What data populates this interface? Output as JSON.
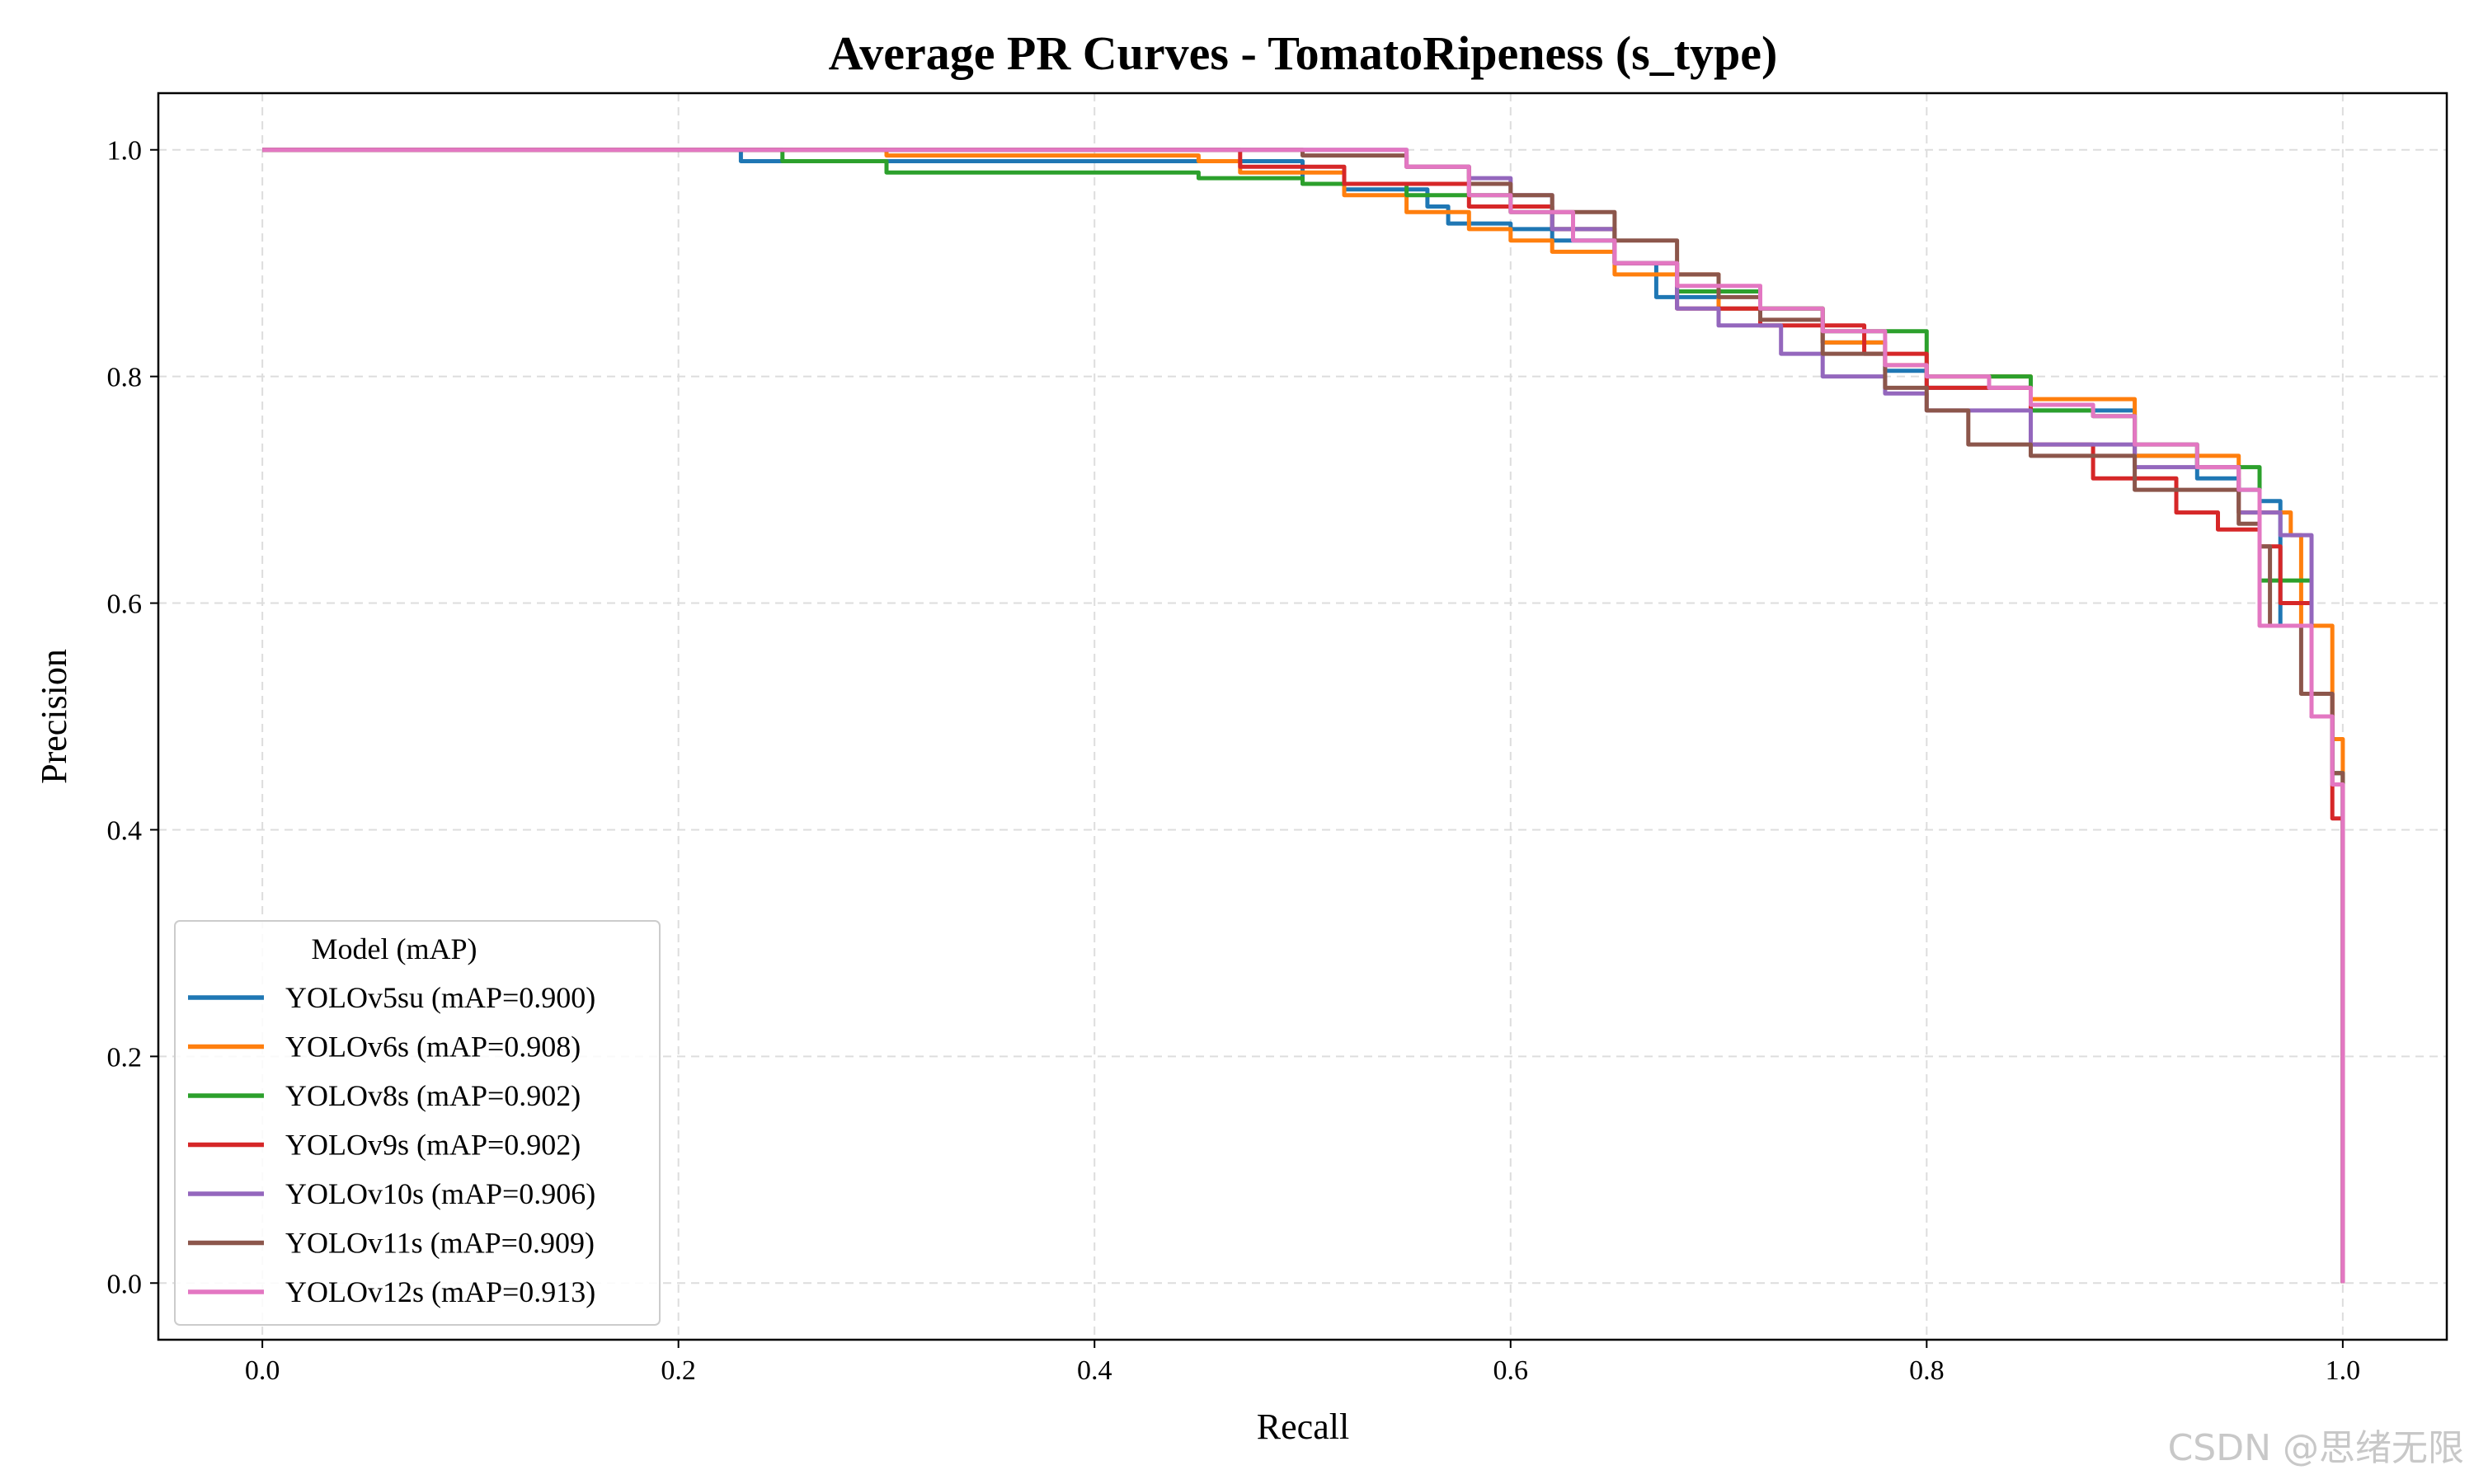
{
  "chart_data": {
    "type": "line",
    "title": "Average PR Curves - TomatoRipeness (s_type)",
    "xlabel": "Recall",
    "ylabel": "Precision",
    "xlim": [
      -0.05,
      1.05
    ],
    "ylim": [
      -0.05,
      1.05
    ],
    "xticks": [
      0.0,
      0.2,
      0.4,
      0.6,
      0.8,
      1.0
    ],
    "xtick_labels": [
      "0.0",
      "0.2",
      "0.4",
      "0.6",
      "0.8",
      "1.0"
    ],
    "yticks": [
      0.0,
      0.2,
      0.4,
      0.6,
      0.8,
      1.0
    ],
    "ytick_labels": [
      "0.0",
      "0.2",
      "0.4",
      "0.6",
      "0.8",
      "1.0"
    ],
    "grid": true,
    "legend": {
      "title": "Model (mAP)",
      "position": "lower-left"
    },
    "series": [
      {
        "name": "YOLOv5su (mAP=0.900)",
        "color": "#1f77b4",
        "x": [
          0.0,
          0.22,
          0.23,
          0.5,
          0.52,
          0.56,
          0.57,
          0.6,
          0.62,
          0.65,
          0.67,
          0.7,
          0.75,
          0.78,
          0.8,
          0.85,
          0.9,
          0.93,
          0.95,
          0.96,
          0.97,
          0.985,
          0.995,
          1.0
        ],
        "y": [
          1.0,
          1.0,
          0.99,
          0.97,
          0.965,
          0.95,
          0.935,
          0.93,
          0.92,
          0.9,
          0.87,
          0.86,
          0.83,
          0.805,
          0.79,
          0.77,
          0.73,
          0.71,
          0.7,
          0.69,
          0.58,
          0.5,
          0.45,
          0.0
        ]
      },
      {
        "name": "YOLOv6s (mAP=0.908)",
        "color": "#ff7f0e",
        "x": [
          0.0,
          0.28,
          0.3,
          0.45,
          0.47,
          0.52,
          0.55,
          0.58,
          0.6,
          0.62,
          0.65,
          0.7,
          0.75,
          0.78,
          0.8,
          0.85,
          0.9,
          0.95,
          0.975,
          0.98,
          0.995,
          1.0
        ],
        "y": [
          1.0,
          1.0,
          0.995,
          0.99,
          0.98,
          0.96,
          0.945,
          0.93,
          0.92,
          0.91,
          0.89,
          0.86,
          0.83,
          0.81,
          0.8,
          0.78,
          0.73,
          0.68,
          0.66,
          0.58,
          0.48,
          0.0
        ]
      },
      {
        "name": "YOLOv8s (mAP=0.902)",
        "color": "#2ca02c",
        "x": [
          0.0,
          0.21,
          0.25,
          0.3,
          0.45,
          0.5,
          0.55,
          0.6,
          0.62,
          0.65,
          0.68,
          0.72,
          0.75,
          0.8,
          0.85,
          0.88,
          0.9,
          0.93,
          0.96,
          0.985,
          0.995,
          1.0
        ],
        "y": [
          1.0,
          1.0,
          0.99,
          0.98,
          0.975,
          0.97,
          0.96,
          0.945,
          0.93,
          0.9,
          0.875,
          0.86,
          0.84,
          0.8,
          0.77,
          0.765,
          0.74,
          0.72,
          0.62,
          0.5,
          0.45,
          0.0
        ]
      },
      {
        "name": "YOLOv9s (mAP=0.902)",
        "color": "#d62728",
        "x": [
          0.0,
          0.4,
          0.47,
          0.52,
          0.58,
          0.62,
          0.65,
          0.68,
          0.72,
          0.77,
          0.8,
          0.85,
          0.88,
          0.92,
          0.94,
          0.96,
          0.97,
          0.985,
          0.995,
          1.0
        ],
        "y": [
          1.0,
          1.0,
          0.985,
          0.97,
          0.95,
          0.93,
          0.9,
          0.86,
          0.845,
          0.82,
          0.79,
          0.74,
          0.71,
          0.68,
          0.665,
          0.65,
          0.6,
          0.52,
          0.41,
          0.0
        ]
      },
      {
        "name": "YOLOv10s (mAP=0.906)",
        "color": "#9467bd",
        "x": [
          0.0,
          0.5,
          0.55,
          0.58,
          0.6,
          0.62,
          0.65,
          0.68,
          0.7,
          0.73,
          0.75,
          0.78,
          0.8,
          0.85,
          0.9,
          0.95,
          0.97,
          0.985,
          0.995,
          1.0
        ],
        "y": [
          1.0,
          1.0,
          0.985,
          0.975,
          0.96,
          0.93,
          0.9,
          0.86,
          0.845,
          0.82,
          0.8,
          0.785,
          0.77,
          0.74,
          0.72,
          0.68,
          0.66,
          0.5,
          0.44,
          0.0
        ]
      },
      {
        "name": "YOLOv11s (mAP=0.909)",
        "color": "#8c564b",
        "x": [
          0.0,
          0.45,
          0.5,
          0.55,
          0.58,
          0.6,
          0.62,
          0.65,
          0.68,
          0.7,
          0.72,
          0.75,
          0.78,
          0.8,
          0.82,
          0.85,
          0.9,
          0.95,
          0.96,
          0.965,
          0.98,
          0.995,
          1.0
        ],
        "y": [
          1.0,
          1.0,
          0.995,
          0.985,
          0.97,
          0.96,
          0.945,
          0.92,
          0.89,
          0.87,
          0.85,
          0.82,
          0.79,
          0.77,
          0.74,
          0.73,
          0.7,
          0.67,
          0.65,
          0.58,
          0.52,
          0.45,
          0.0
        ]
      },
      {
        "name": "YOLOv12s (mAP=0.913)",
        "color": "#e377c2",
        "x": [
          0.0,
          0.5,
          0.55,
          0.58,
          0.6,
          0.63,
          0.65,
          0.68,
          0.72,
          0.75,
          0.78,
          0.8,
          0.83,
          0.85,
          0.88,
          0.9,
          0.93,
          0.95,
          0.96,
          0.985,
          0.995,
          1.0
        ],
        "y": [
          1.0,
          1.0,
          0.985,
          0.96,
          0.945,
          0.92,
          0.9,
          0.88,
          0.86,
          0.84,
          0.81,
          0.8,
          0.79,
          0.775,
          0.765,
          0.74,
          0.72,
          0.7,
          0.58,
          0.5,
          0.44,
          0.0
        ]
      }
    ]
  },
  "watermark": "CSDN @思绪无限"
}
